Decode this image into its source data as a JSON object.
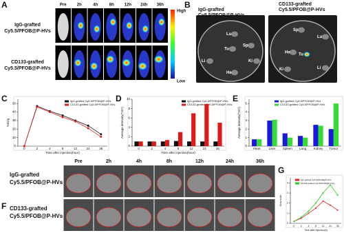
{
  "panels": {
    "A": {
      "letter": "A",
      "columns": [
        "Pre",
        "2h",
        "4h",
        "8h",
        "12h",
        "24h",
        "36h"
      ],
      "rows": [
        "IgG-grafted Cy5.5/PFOB@P-HVs",
        "CD133-grafted Cy5.5/PFOB@P-HVs"
      ],
      "scale": {
        "high": "High",
        "low": "Low"
      }
    },
    "B": {
      "letter": "B",
      "dishes": [
        {
          "title": "IgG-grafted Cy5.5/PFOB@P-HVs",
          "organs": [
            "Lu",
            "Sp",
            "Tu",
            "Li",
            "Ki",
            "He"
          ]
        },
        {
          "title": "CD133-grafted Cy5.5/PFOB@P-HVs",
          "organs": [
            "Sp",
            "Lu",
            "He",
            "Tu",
            "Ki",
            "Li"
          ]
        }
      ]
    },
    "F": {
      "letter": "F",
      "columns": [
        "Pre",
        "2h",
        "4h",
        "8h",
        "12h",
        "24h",
        "36h"
      ],
      "rows": [
        "IgG-grafted Cy5.5/PFOB@P-HVs",
        "CD133-grafted Cy5.5/PFOB@P-HVs"
      ]
    }
  },
  "chart_data": [
    {
      "type": "line",
      "panel": "C",
      "ylabel": "%ID/g",
      "xlabel": "Time after injection(hour)",
      "categories": [
        "0",
        "2",
        "4",
        "8",
        "12",
        "24",
        "36"
      ],
      "ylim": [
        0,
        55
      ],
      "yticks": [
        0,
        10,
        20,
        30,
        40,
        50
      ],
      "legend": "upper right",
      "series": [
        {
          "name": "IgG-grafted Cy5.5/PFOB@P-HVs",
          "color": "#111111",
          "values": [
            0,
            47,
            41,
            36,
            30,
            24,
            14
          ]
        },
        {
          "name": "CD133-grafted Cy5.5/PFOB@P-HVs",
          "color": "#e02020",
          "values": [
            0,
            46,
            40,
            34,
            29,
            21,
            11
          ]
        }
      ]
    },
    {
      "type": "bar",
      "panel": "D",
      "ylabel": "Average intensity(*10⁶)",
      "xlabel": "Time after injection(hour)",
      "categories": [
        "0",
        "2",
        "4",
        "8",
        "12",
        "24",
        "36"
      ],
      "ylim": [
        0,
        10
      ],
      "yticks": [
        0,
        2,
        4,
        6,
        8,
        10
      ],
      "legend": "upper right",
      "series": [
        {
          "name": "IgG-grafted Cy5.5/PFOB@P-HVs",
          "color": "#111111",
          "values": [
            1,
            1,
            1,
            1.1,
            1,
            1,
            1
          ]
        },
        {
          "name": "CD133-grafted Cy5.5/PFOB@P-HVs",
          "color": "#e01818",
          "values": [
            1,
            1,
            1.3,
            3,
            7,
            9,
            5
          ]
        }
      ]
    },
    {
      "type": "bar",
      "panel": "E",
      "ylabel": "Average intensity(*10⁶)",
      "categories": [
        "Heart",
        "Liver",
        "Spleen",
        "Lung",
        "Kidney",
        "Tumor"
      ],
      "ylim": [
        0,
        5.5
      ],
      "yticks": [
        0,
        1,
        2,
        3,
        4,
        5
      ],
      "legend": "upper center",
      "series": [
        {
          "name": "IgG-grafted Cy5.5/PFOB@P-HVs",
          "color": "#1a1adc",
          "values": [
            0.8,
            3,
            1.5,
            1.2,
            2.5,
            2
          ]
        },
        {
          "name": "CD133-grafted Cy5.5/PFOB@P-HVs",
          "color": "#33dd33",
          "values": [
            0.8,
            3.1,
            1,
            1,
            2.4,
            5
          ]
        }
      ]
    },
    {
      "type": "line",
      "panel": "G",
      "ylabel": "Gray scale",
      "xlabel": "Time after injection(h)",
      "categories": [
        "0",
        "2",
        "4",
        "8",
        "12",
        "24",
        "36"
      ],
      "ylim": [
        0,
        4.5
      ],
      "yticks": [
        0,
        1,
        2,
        3,
        4
      ],
      "legend": "upper center",
      "series": [
        {
          "name": "IgG-grafted Cy5.5/PFOB@P-HVs",
          "color": "#e02020",
          "values": [
            0.2,
            0.5,
            1,
            1.5,
            2.2,
            1.8,
            1.3
          ]
        },
        {
          "name": "CD133-grafted Cy5.5/PFOB@P-HVs",
          "color": "#22cc22",
          "values": [
            0.2,
            0.6,
            1.2,
            2,
            3,
            3.8,
            2.8
          ]
        }
      ]
    }
  ]
}
